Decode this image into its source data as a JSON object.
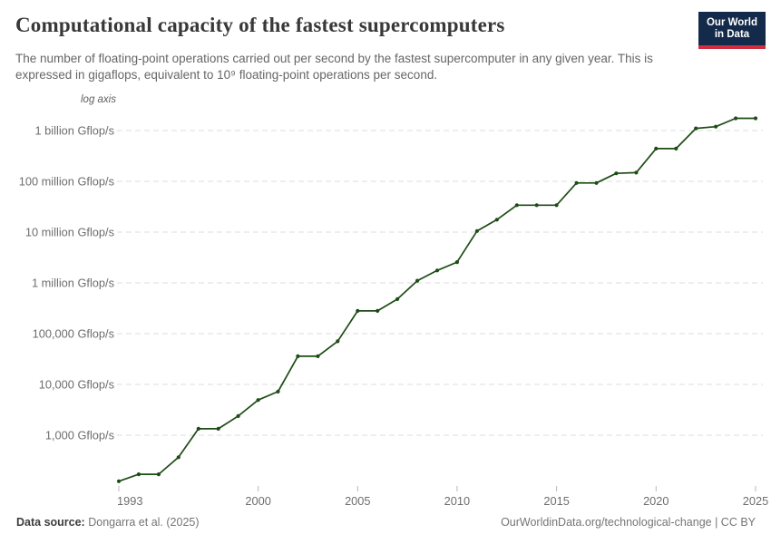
{
  "header": {
    "title": "Computational capacity of the fastest supercomputers",
    "subtitle": "The number of floating-point operations carried out per second by the fastest supercomputer in any given year. This is expressed in gigaflops, equivalent to 10⁹ floating-point operations per second.",
    "logo": {
      "line1": "Our World",
      "line2": "in Data",
      "bg_color": "#142a4a",
      "accent_color": "#cf2e3e",
      "text_color": "#ffffff"
    }
  },
  "chart_data": {
    "type": "line",
    "title": "Computational capacity of the fastest supercomputers",
    "axis_note": "log axis",
    "unit": "Gflop/s",
    "yscale": "log",
    "grid": true,
    "legend": "none",
    "line_color": "#1e4c16",
    "grid_color": "#dcdcdc",
    "tick_color": "#b9b9b9",
    "tick_label_color": "#6e6e6e",
    "x": [
      1993,
      1994,
      1995,
      1996,
      1997,
      1998,
      1999,
      2000,
      2001,
      2002,
      2003,
      2004,
      2005,
      2006,
      2007,
      2008,
      2009,
      2010,
      2011,
      2012,
      2013,
      2014,
      2015,
      2016,
      2017,
      2018,
      2019,
      2020,
      2021,
      2022,
      2023,
      2024,
      2025
    ],
    "values": [
      124,
      170,
      170,
      368,
      1338,
      1338,
      2380,
      4940,
      7230,
      35860,
      35860,
      70720,
      280600,
      280600,
      478200,
      1105000,
      1759000,
      2566000,
      10510000,
      17590000,
      33862700,
      33862700,
      33862700,
      93014600,
      93014600,
      143500000,
      148600000,
      442010000,
      442010000,
      1102000000,
      1194000000,
      1742000000,
      1742000000
    ],
    "xticks": [
      1993,
      2000,
      2005,
      2010,
      2015,
      2020,
      2025
    ],
    "yticks": [
      {
        "value": 1000000000,
        "label": "1 billion Gflop/s"
      },
      {
        "value": 100000000,
        "label": "100 million Gflop/s"
      },
      {
        "value": 10000000,
        "label": "10 million Gflop/s"
      },
      {
        "value": 1000000,
        "label": "1 million Gflop/s"
      },
      {
        "value": 100000,
        "label": "100,000 Gflop/s"
      },
      {
        "value": 10000,
        "label": "10,000 Gflop/s"
      },
      {
        "value": 1000,
        "label": "1,000 Gflop/s"
      }
    ],
    "xlim": [
      1993,
      2025
    ],
    "ylim": [
      100,
      2200000000
    ]
  },
  "footer": {
    "source_label": "Data source:",
    "source_value": "Dongarra et al. (2025)",
    "credit": "OurWorldinData.org/technological-change | CC BY"
  }
}
